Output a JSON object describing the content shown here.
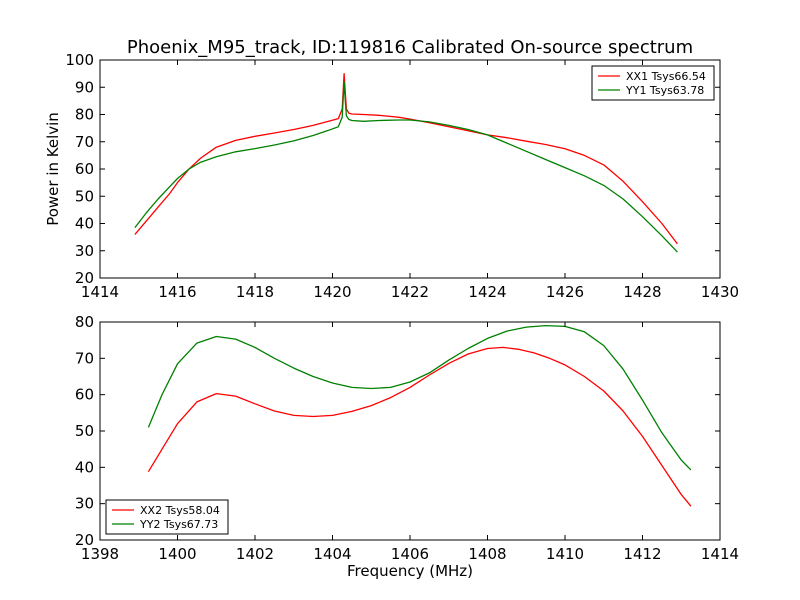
{
  "title": "Phoenix_M95_track, ID:119816 Calibrated On-source spectrum",
  "ylabel": "Power in Kelvin",
  "xlabel": "Frequency (MHz)",
  "colors": {
    "xx": "#ff0000",
    "yy": "#008000"
  },
  "chart_data": [
    {
      "type": "line",
      "name": "upper",
      "xlim": [
        1414,
        1430
      ],
      "ylim": [
        20,
        100
      ],
      "xticks": [
        1414,
        1416,
        1418,
        1420,
        1422,
        1424,
        1426,
        1428,
        1430
      ],
      "yticks": [
        20,
        30,
        40,
        50,
        60,
        70,
        80,
        90,
        100
      ],
      "legend_position": "top-right",
      "series": [
        {
          "name": "XX1 Tsys66.54",
          "color": "#ff0000",
          "x": [
            1414.9,
            1415.2,
            1415.5,
            1415.8,
            1416.0,
            1416.3,
            1416.6,
            1417.0,
            1417.5,
            1418.0,
            1418.5,
            1419.0,
            1419.5,
            1419.9,
            1420.15,
            1420.25,
            1420.3,
            1420.33,
            1420.36,
            1420.42,
            1420.5,
            1420.8,
            1421.2,
            1421.7,
            1422.0,
            1422.5,
            1423.0,
            1423.5,
            1424.0,
            1424.5,
            1425.0,
            1425.5,
            1426.0,
            1426.5,
            1427.0,
            1427.5,
            1428.0,
            1428.5,
            1428.9
          ],
          "y": [
            36,
            41,
            46,
            51,
            55,
            60,
            64,
            68,
            70.5,
            72,
            73.2,
            74.5,
            76,
            77.5,
            78.5,
            82,
            95,
            88,
            82,
            80.5,
            80.2,
            80,
            79.7,
            79,
            78.3,
            77,
            75.5,
            74,
            72.5,
            71.5,
            70.2,
            69,
            67.4,
            65,
            61.5,
            55.5,
            48,
            40,
            32.5
          ]
        },
        {
          "name": "YY1 Tsys63.78",
          "color": "#008000",
          "x": [
            1414.9,
            1415.2,
            1415.5,
            1415.8,
            1416.0,
            1416.3,
            1416.6,
            1417.0,
            1417.5,
            1418.0,
            1418.5,
            1419.0,
            1419.5,
            1419.9,
            1420.15,
            1420.25,
            1420.3,
            1420.33,
            1420.36,
            1420.42,
            1420.5,
            1420.8,
            1421.2,
            1421.7,
            1422.0,
            1422.5,
            1423.0,
            1423.5,
            1424.0,
            1424.5,
            1425.0,
            1425.5,
            1426.0,
            1426.5,
            1427.0,
            1427.5,
            1428.0,
            1428.5,
            1428.9
          ],
          "y": [
            38.5,
            44,
            49,
            53.5,
            56.5,
            60,
            62.5,
            64.5,
            66.3,
            67.5,
            68.8,
            70.3,
            72.3,
            74.2,
            75.5,
            79,
            92,
            85,
            79.5,
            78.2,
            77.8,
            77.5,
            77.8,
            78,
            78,
            77.3,
            76,
            74.5,
            72.5,
            69.5,
            66.5,
            63.5,
            60.5,
            57.5,
            54,
            49,
            42.5,
            35.5,
            29.5
          ]
        }
      ]
    },
    {
      "type": "line",
      "name": "lower",
      "xlim": [
        1398,
        1414
      ],
      "ylim": [
        20,
        80
      ],
      "xticks": [
        1398,
        1400,
        1402,
        1404,
        1406,
        1408,
        1410,
        1412,
        1414
      ],
      "yticks": [
        20,
        30,
        40,
        50,
        60,
        70,
        80
      ],
      "legend_position": "bottom-left",
      "series": [
        {
          "name": "XX2 Tsys58.04",
          "color": "#ff0000",
          "x": [
            1399.25,
            1399.6,
            1400.0,
            1400.5,
            1401.0,
            1401.5,
            1402.0,
            1402.5,
            1403.0,
            1403.5,
            1404.0,
            1404.5,
            1405.0,
            1405.5,
            1406.0,
            1406.5,
            1407.0,
            1407.5,
            1408.0,
            1408.4,
            1408.8,
            1409.2,
            1409.6,
            1410.0,
            1410.5,
            1411.0,
            1411.5,
            1412.0,
            1412.5,
            1413.0,
            1413.25
          ],
          "y": [
            38.8,
            45,
            52,
            58,
            60.3,
            59.6,
            57.5,
            55.5,
            54.3,
            54.0,
            54.3,
            55.4,
            57,
            59.2,
            62,
            65.4,
            68.6,
            71.2,
            72.7,
            73,
            72.5,
            71.5,
            70,
            68.2,
            65,
            61,
            55.5,
            48.5,
            40.5,
            32.5,
            29.3
          ]
        },
        {
          "name": "YY2 Tsys67.73",
          "color": "#008000",
          "x": [
            1399.25,
            1399.6,
            1400.0,
            1400.5,
            1401.0,
            1401.5,
            1402.0,
            1402.5,
            1403.0,
            1403.5,
            1404.0,
            1404.5,
            1405.0,
            1405.5,
            1406.0,
            1406.5,
            1407.0,
            1407.5,
            1408.0,
            1408.5,
            1409.0,
            1409.5,
            1410.0,
            1410.5,
            1411.0,
            1411.5,
            1412.0,
            1412.5,
            1413.0,
            1413.25
          ],
          "y": [
            51,
            60,
            68.5,
            74.2,
            76,
            75.3,
            73,
            70,
            67.3,
            65,
            63.2,
            62,
            61.7,
            62,
            63.5,
            66,
            69.5,
            72.7,
            75.5,
            77.5,
            78.6,
            79,
            78.8,
            77.3,
            73.5,
            67,
            58.5,
            49.5,
            42,
            39.3
          ]
        }
      ]
    }
  ]
}
